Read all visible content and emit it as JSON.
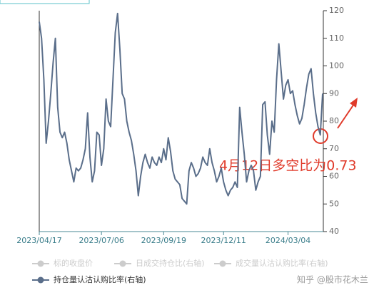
{
  "chart_data": {
    "type": "line",
    "categories": [
      "2023/04/17",
      null,
      null,
      null,
      null,
      null,
      null,
      null,
      null,
      null,
      null,
      null,
      null,
      null,
      null,
      null,
      null,
      null,
      null,
      null,
      null,
      null,
      null,
      null,
      null,
      null,
      null,
      "2023/07/06",
      null,
      null,
      null,
      null,
      null,
      null,
      null,
      null,
      null,
      null,
      null,
      null,
      null,
      null,
      null,
      null,
      null,
      null,
      null,
      null,
      null,
      null,
      null,
      null,
      null,
      null,
      "2023/09/19",
      null,
      null,
      null,
      null,
      null,
      null,
      null,
      null,
      null,
      null,
      null,
      null,
      null,
      null,
      null,
      null,
      null,
      null,
      null,
      null,
      null,
      null,
      null,
      null,
      null,
      "2023/12/11",
      null,
      null,
      null,
      null,
      null,
      null,
      null,
      null,
      null,
      null,
      null,
      null,
      null,
      null,
      null,
      null,
      null,
      null,
      null,
      null,
      null,
      null,
      null,
      null,
      null,
      null,
      null,
      "2024/03/04",
      null,
      null,
      null,
      null,
      null,
      null,
      null,
      null,
      null,
      null,
      null,
      null,
      null,
      null,
      null
    ],
    "series": [
      {
        "name": "持仓量认沽认购比率(右轴)",
        "color": "#5a6e8a",
        "axis": "y2",
        "values": [
          116,
          110,
          95,
          72,
          80,
          90,
          101,
          110,
          85,
          76,
          74,
          76,
          72,
          66,
          62,
          58,
          63,
          62,
          63,
          66,
          70,
          83,
          67,
          58,
          62,
          76,
          75,
          64,
          70,
          88,
          80,
          78,
          95,
          112,
          119,
          106,
          90,
          88,
          80,
          76,
          73,
          68,
          62,
          53,
          60,
          65,
          68,
          65,
          63,
          67,
          65,
          64,
          67,
          65,
          70,
          66,
          74,
          69,
          62,
          59,
          58,
          57,
          52,
          51,
          50,
          62,
          65,
          63,
          60,
          61,
          63,
          67,
          65,
          64,
          70,
          65,
          62,
          58,
          60,
          63,
          58,
          55,
          53,
          55,
          56,
          58,
          56,
          85,
          76,
          68,
          58,
          62,
          64,
          62,
          55,
          58,
          60,
          86,
          87,
          75,
          68,
          80,
          76,
          95,
          108,
          98,
          88,
          93,
          95,
          90,
          91,
          86,
          82,
          79,
          81,
          86,
          92,
          97,
          99,
          90,
          83,
          78,
          75,
          90
        ]
      }
    ],
    "legend_inactive": {
      "names": [
        "标的收盘价",
        "日成交持仓比(右轴)",
        "成交量认沽认购比率(右轴)"
      ],
      "color": "#cccccc"
    },
    "y2lim": [
      40,
      120
    ],
    "y2ticks": [
      40,
      50,
      60,
      70,
      80,
      90,
      100,
      110,
      120
    ],
    "annotation": "4月12日多空比为0.73",
    "watermark": "知乎 @股市花木兰"
  }
}
